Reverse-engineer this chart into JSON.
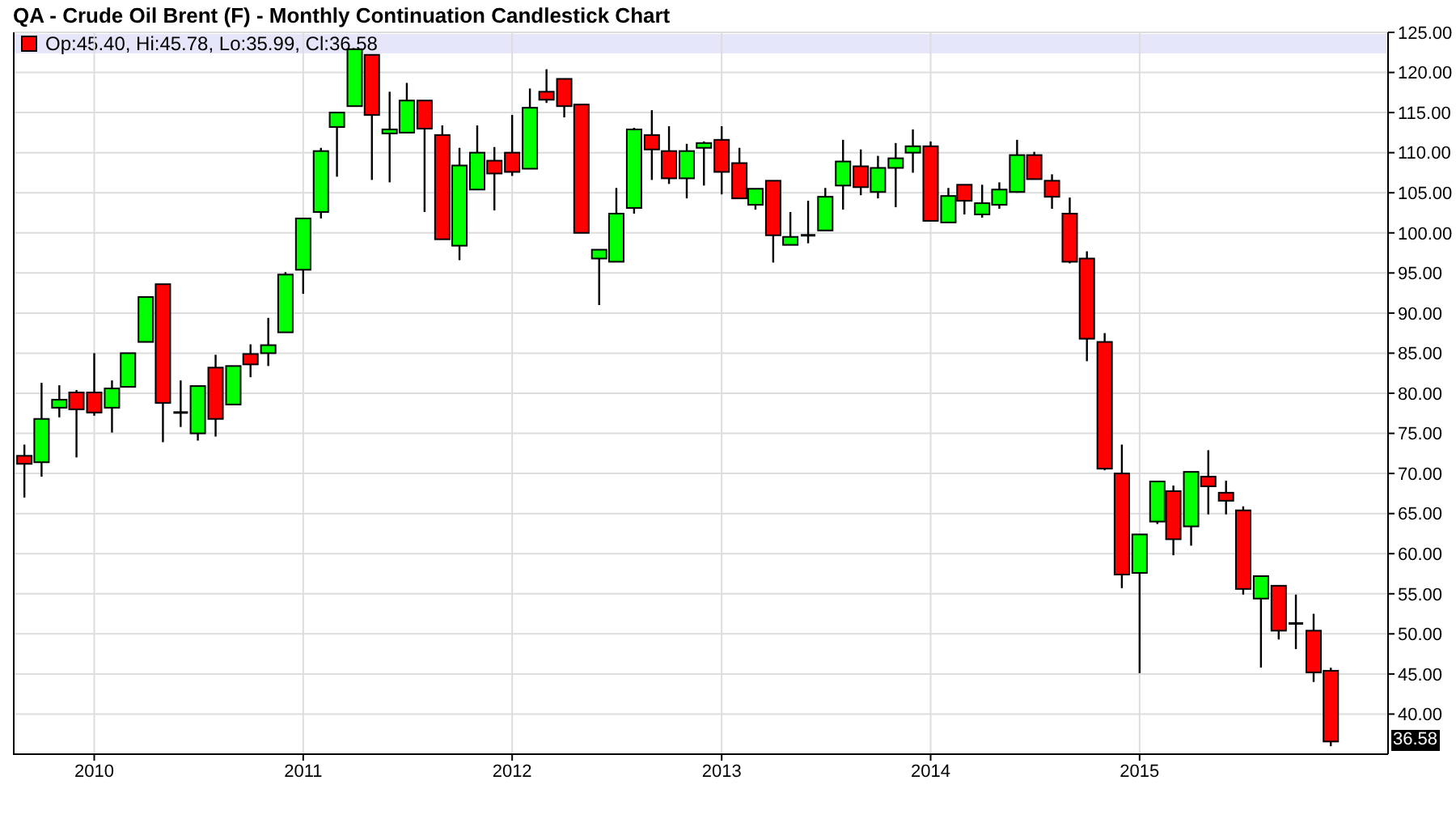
{
  "chart_data": {
    "type": "candlestick",
    "title": "QA - Crude Oil Brent (F) - Monthly Continuation Candlestick Chart",
    "annotations": [
      "Op:45.40, Hi:45.78, Lo:35.99, Cl:36.58",
      {
        "text": "36.58",
        "y": 36.58
      }
    ],
    "x": [
      "2009-09",
      "2009-10",
      "2009-11",
      "2009-12",
      "2010-01",
      "2010-02",
      "2010-03",
      "2010-04",
      "2010-05",
      "2010-06",
      "2010-07",
      "2010-08",
      "2010-09",
      "2010-10",
      "2010-11",
      "2010-12",
      "2011-01",
      "2011-02",
      "2011-03",
      "2011-04",
      "2011-05",
      "2011-06",
      "2011-07",
      "2011-08",
      "2011-09",
      "2011-10",
      "2011-11",
      "2011-12",
      "2012-01",
      "2012-02",
      "2012-03",
      "2012-04",
      "2012-05",
      "2012-06",
      "2012-07",
      "2012-08",
      "2012-09",
      "2012-10",
      "2012-11",
      "2012-12",
      "2013-01",
      "2013-02",
      "2013-03",
      "2013-04",
      "2013-05",
      "2013-06",
      "2013-07",
      "2013-08",
      "2013-09",
      "2013-10",
      "2013-11",
      "2013-12",
      "2014-01",
      "2014-02",
      "2014-03",
      "2014-04",
      "2014-05",
      "2014-06",
      "2014-07",
      "2014-08",
      "2014-09",
      "2014-10",
      "2014-11",
      "2014-12",
      "2015-01",
      "2015-02",
      "2015-03",
      "2015-04",
      "2015-05",
      "2015-06",
      "2015-07",
      "2015-08",
      "2015-09",
      "2015-10",
      "2015-11",
      "2015-12"
    ],
    "ohlc": [
      [
        72.2,
        73.6,
        67.0,
        71.2
      ],
      [
        71.4,
        81.3,
        69.6,
        76.8
      ],
      [
        78.2,
        81.0,
        77.0,
        79.2
      ],
      [
        80.1,
        80.4,
        72.0,
        78.0
      ],
      [
        80.1,
        85.0,
        77.2,
        77.6
      ],
      [
        78.2,
        81.6,
        75.1,
        80.6
      ],
      [
        80.8,
        85.0,
        80.8,
        85.0
      ],
      [
        86.4,
        92.0,
        86.4,
        92.0
      ],
      [
        93.6,
        93.6,
        73.9,
        78.8
      ],
      [
        77.6,
        81.6,
        75.8,
        77.6
      ],
      [
        75.0,
        80.9,
        74.1,
        80.9
      ],
      [
        83.2,
        84.8,
        74.6,
        76.8
      ],
      [
        78.6,
        83.4,
        78.6,
        83.4
      ],
      [
        84.9,
        86.1,
        82.0,
        83.6
      ],
      [
        85.0,
        89.4,
        83.4,
        86.0
      ],
      [
        87.6,
        95.1,
        87.6,
        94.8
      ],
      [
        95.4,
        101.8,
        92.4,
        101.8
      ],
      [
        102.6,
        110.6,
        101.8,
        110.2
      ],
      [
        113.2,
        115.0,
        107.0,
        115.0
      ],
      [
        115.8,
        123.0,
        115.8,
        122.9
      ],
      [
        122.2,
        122.2,
        106.6,
        114.7
      ],
      [
        112.4,
        117.6,
        106.3,
        112.9
      ],
      [
        112.5,
        118.7,
        112.5,
        116.5
      ],
      [
        116.5,
        116.5,
        102.6,
        113.0
      ],
      [
        112.2,
        113.4,
        99.2,
        99.2
      ],
      [
        98.4,
        110.6,
        96.6,
        108.4
      ],
      [
        105.4,
        113.4,
        105.4,
        110.0
      ],
      [
        109.0,
        110.7,
        102.8,
        107.4
      ],
      [
        110.0,
        114.7,
        107.1,
        107.6
      ],
      [
        108.0,
        118.0,
        108.0,
        115.6
      ],
      [
        117.6,
        120.4,
        116.2,
        116.6
      ],
      [
        119.2,
        119.2,
        114.4,
        115.8
      ],
      [
        116.0,
        116.0,
        100.0,
        100.0
      ],
      [
        96.8,
        97.9,
        91.0,
        97.9
      ],
      [
        96.4,
        105.6,
        96.4,
        102.4
      ],
      [
        103.1,
        113.1,
        102.4,
        112.9
      ],
      [
        112.2,
        115.3,
        106.6,
        110.4
      ],
      [
        110.2,
        113.3,
        106.1,
        106.8
      ],
      [
        106.8,
        111.1,
        104.3,
        110.2
      ],
      [
        110.6,
        111.4,
        105.9,
        111.2
      ],
      [
        111.6,
        113.3,
        104.8,
        107.6
      ],
      [
        108.7,
        110.6,
        104.3,
        104.3
      ],
      [
        103.5,
        105.5,
        102.9,
        105.5
      ],
      [
        106.5,
        106.5,
        96.3,
        99.7
      ],
      [
        98.5,
        102.6,
        98.5,
        99.5
      ],
      [
        99.7,
        104.0,
        98.7,
        99.7
      ],
      [
        100.3,
        105.6,
        100.3,
        104.5
      ],
      [
        105.9,
        111.6,
        102.9,
        108.9
      ],
      [
        108.3,
        110.4,
        104.7,
        105.7
      ],
      [
        105.1,
        109.6,
        104.3,
        108.1
      ],
      [
        108.1,
        111.2,
        103.2,
        109.3
      ],
      [
        110.0,
        112.9,
        107.5,
        110.8
      ],
      [
        110.8,
        111.4,
        101.5,
        101.5
      ],
      [
        101.3,
        105.6,
        101.3,
        104.6
      ],
      [
        106.0,
        106.0,
        102.3,
        104.0
      ],
      [
        102.3,
        106.0,
        101.9,
        103.7
      ],
      [
        103.5,
        106.3,
        103.0,
        105.4
      ],
      [
        105.1,
        111.6,
        105.0,
        109.7
      ],
      [
        109.7,
        110.1,
        106.7,
        106.7
      ],
      [
        106.5,
        107.3,
        103.0,
        104.5
      ],
      [
        102.4,
        104.4,
        96.2,
        96.4
      ],
      [
        96.8,
        97.7,
        84.0,
        86.8
      ],
      [
        86.4,
        87.5,
        70.4,
        70.6
      ],
      [
        70.0,
        73.6,
        55.7,
        57.4
      ],
      [
        57.6,
        62.4,
        45.1,
        62.4
      ],
      [
        64.0,
        69.0,
        63.7,
        69.0
      ],
      [
        67.8,
        68.5,
        59.8,
        61.8
      ],
      [
        63.4,
        70.2,
        61.0,
        70.2
      ],
      [
        69.6,
        72.9,
        64.9,
        68.4
      ],
      [
        67.6,
        69.1,
        64.9,
        66.6
      ],
      [
        65.4,
        65.9,
        54.9,
        55.6
      ],
      [
        54.4,
        57.2,
        45.8,
        57.2
      ],
      [
        56.0,
        56.0,
        49.3,
        50.4
      ],
      [
        51.3,
        54.9,
        48.1,
        51.3
      ],
      [
        50.4,
        52.5,
        44.0,
        45.2
      ],
      [
        45.4,
        45.78,
        35.99,
        36.58
      ]
    ],
    "colors": [
      "#ff0000",
      "#00ff00",
      "#00ff00",
      "#ff0000",
      "#ff0000",
      "#00ff00",
      "#00ff00",
      "#00ff00",
      "#ff0000",
      "#000000",
      "#00ff00",
      "#ff0000",
      "#00ff00",
      "#ff0000",
      "#00ff00",
      "#00ff00",
      "#00ff00",
      "#00ff00",
      "#00ff00",
      "#00ff00",
      "#ff0000",
      "#00ff00",
      "#00ff00",
      "#ff0000",
      "#ff0000",
      "#00ff00",
      "#00ff00",
      "#ff0000",
      "#ff0000",
      "#00ff00",
      "#ff0000",
      "#ff0000",
      "#ff0000",
      "#00ff00",
      "#00ff00",
      "#00ff00",
      "#ff0000",
      "#ff0000",
      "#00ff00",
      "#00ff00",
      "#ff0000",
      "#ff0000",
      "#00ff00",
      "#ff0000",
      "#00ff00",
      "#000000",
      "#00ff00",
      "#00ff00",
      "#ff0000",
      "#00ff00",
      "#00ff00",
      "#00ff00",
      "#ff0000",
      "#00ff00",
      "#ff0000",
      "#00ff00",
      "#00ff00",
      "#00ff00",
      "#ff0000",
      "#ff0000",
      "#ff0000",
      "#ff0000",
      "#ff0000",
      "#ff0000",
      "#00ff00",
      "#00ff00",
      "#ff0000",
      "#00ff00",
      "#ff0000",
      "#ff0000",
      "#ff0000",
      "#00ff00",
      "#ff0000",
      "#000000",
      "#ff0000",
      "#ff0000"
    ],
    "xlim": [
      "2009-08-12",
      "2016-03-10"
    ],
    "xticks": [
      "2010",
      "2011",
      "2012",
      "2013",
      "2014",
      "2015"
    ],
    "ylim": [
      35,
      125
    ],
    "yticks": [
      {
        "value": 40,
        "label": "40.00"
      },
      {
        "value": 45,
        "label": "45.00"
      },
      {
        "value": 50,
        "label": "50.00"
      },
      {
        "value": 55,
        "label": "55.00"
      },
      {
        "value": 60,
        "label": "60.00"
      },
      {
        "value": 65,
        "label": "65.00"
      },
      {
        "value": 70,
        "label": "70.00"
      },
      {
        "value": 75,
        "label": "75.00"
      },
      {
        "value": 80,
        "label": "80.00"
      },
      {
        "value": 85,
        "label": "85.00"
      },
      {
        "value": 90,
        "label": "90.00"
      },
      {
        "value": 95,
        "label": "95.00"
      },
      {
        "value": 100,
        "label": "100.00"
      },
      {
        "value": 105,
        "label": "105.00"
      },
      {
        "value": 110,
        "label": "110.00"
      },
      {
        "value": 115,
        "label": "115.00"
      },
      {
        "value": 120,
        "label": "120.00"
      },
      {
        "value": 125,
        "label": "125.00"
      }
    ],
    "grid": true
  }
}
